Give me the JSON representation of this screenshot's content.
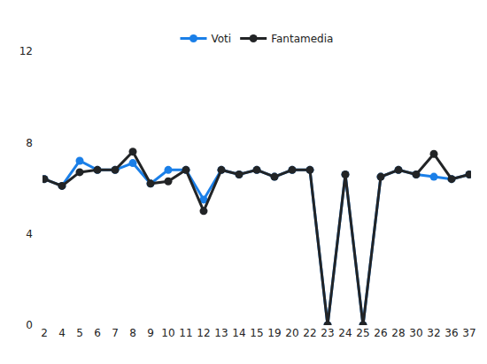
{
  "chart_data": {
    "type": "line",
    "categories": [
      "2",
      "4",
      "5",
      "6",
      "7",
      "8",
      "9",
      "10",
      "11",
      "12",
      "13",
      "14",
      "15",
      "19",
      "20",
      "22",
      "23",
      "24",
      "25",
      "26",
      "28",
      "30",
      "32",
      "36",
      "37"
    ],
    "series": [
      {
        "name": "Voti",
        "color": "#1a7fe8",
        "marker": "circle",
        "values": [
          6.4,
          6.1,
          7.2,
          6.8,
          6.8,
          7.1,
          6.2,
          6.8,
          6.8,
          5.5,
          6.8,
          6.6,
          6.8,
          6.5,
          6.8,
          6.8,
          0,
          6.6,
          0,
          6.5,
          6.8,
          6.6,
          6.5,
          6.4,
          6.6
        ]
      },
      {
        "name": "Fantamedia",
        "color": "#222426",
        "marker": "circle",
        "values": [
          6.4,
          6.1,
          6.7,
          6.8,
          6.8,
          7.6,
          6.2,
          6.3,
          6.8,
          5.0,
          6.8,
          6.6,
          6.8,
          6.5,
          6.8,
          6.8,
          0,
          6.6,
          0,
          6.5,
          6.8,
          6.6,
          7.5,
          6.4,
          6.6
        ]
      }
    ],
    "ylim": [
      0,
      12
    ],
    "yticks": [
      0,
      4,
      8,
      12
    ],
    "grid": false,
    "legend": "top"
  }
}
